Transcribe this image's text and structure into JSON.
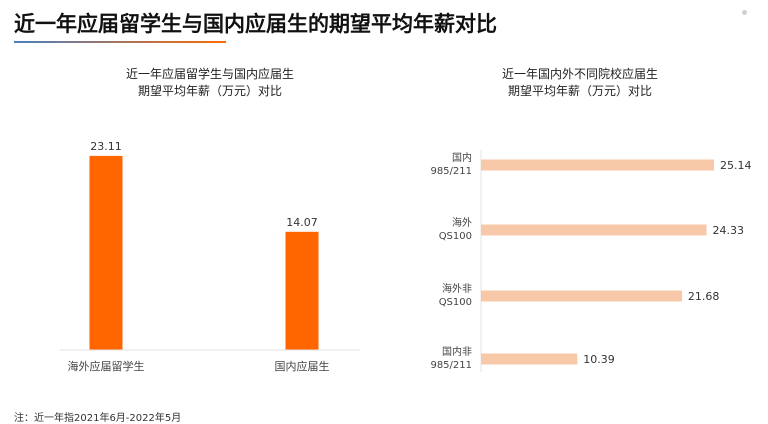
{
  "page": {
    "title": "近一年应届留学生与国内应届生的期望平均年薪对比",
    "footnote": "注：近一年指2021年6月-2022年5月",
    "accent_color": "#4a7fc1",
    "accent_color_2": "#ff6a00"
  },
  "chart_data": [
    {
      "type": "bar",
      "title_lines": [
        "近一年应届留学生与国内应届生",
        "期望平均年薪（万元）对比"
      ],
      "categories": [
        "海外应届留学生",
        "国内应届生"
      ],
      "values": [
        23.11,
        14.07
      ],
      "value_labels": [
        "23.11",
        "14.07"
      ],
      "ylim": [
        0,
        25
      ],
      "grid": false,
      "bar_color": "#ff6600"
    },
    {
      "type": "bar",
      "orientation": "horizontal",
      "title_lines": [
        "近一年国内外不同院校应届生",
        "期望平均年薪（万元）对比"
      ],
      "categories": [
        [
          "国内",
          "985/211"
        ],
        [
          "海外",
          "QS100"
        ],
        [
          "海外非",
          "QS100"
        ],
        [
          "国内非",
          "985/211"
        ]
      ],
      "values": [
        25.14,
        24.33,
        21.68,
        10.39
      ],
      "value_labels": [
        "25.14",
        "24.33",
        "21.68",
        "10.39"
      ],
      "xlim": [
        0,
        25.14
      ],
      "grid": false,
      "bar_color": "#f8c9a8"
    }
  ]
}
